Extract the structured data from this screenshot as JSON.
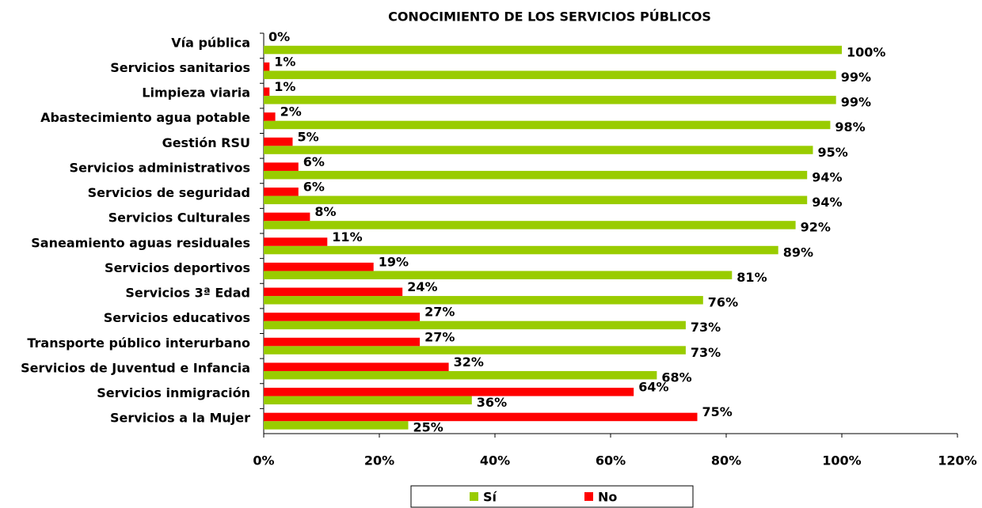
{
  "chart_data": {
    "type": "hbar",
    "title": "CONOCIMIENTO DE LOS SERVICIOS PÚBLICOS",
    "categories": [
      "Vía pública",
      "Servicios sanitarios",
      "Limpieza viaria",
      "Abastecimiento agua potable",
      "Gestión RSU",
      "Servicios administrativos",
      "Servicios de seguridad",
      "Servicios Culturales",
      "Saneamiento aguas residuales",
      "Servicios deportivos",
      "Servicios 3ª Edad",
      "Servicios educativos",
      "Transporte público interurbano",
      "Servicios de Juventud e Infancia",
      "Servicios inmigración",
      "Servicios a la Mujer"
    ],
    "series": [
      {
        "name": "Sí",
        "color": "#99cc00",
        "values": [
          100,
          99,
          99,
          98,
          95,
          94,
          94,
          92,
          89,
          81,
          76,
          73,
          73,
          68,
          36,
          25
        ],
        "value_labels": [
          "100%",
          "99%",
          "99%",
          "98%",
          "95%",
          "94%",
          "94%",
          "92%",
          "89%",
          "81%",
          "76%",
          "73%",
          "73%",
          "68%",
          "36%",
          "25%"
        ]
      },
      {
        "name": "No",
        "color": "#ff0000",
        "values": [
          0,
          1,
          1,
          2,
          5,
          6,
          6,
          8,
          11,
          19,
          24,
          27,
          27,
          32,
          64,
          75
        ],
        "value_labels": [
          "0%",
          "1%",
          "1%",
          "2%",
          "5%",
          "6%",
          "6%",
          "8%",
          "11%",
          "19%",
          "24%",
          "27%",
          "27%",
          "32%",
          "64%",
          "75%"
        ]
      }
    ],
    "xlim": [
      0,
      120
    ],
    "xticks": [
      {
        "value": 0,
        "label": "0%"
      },
      {
        "value": 20,
        "label": "20%"
      },
      {
        "value": 40,
        "label": "40%"
      },
      {
        "value": 60,
        "label": "60%"
      },
      {
        "value": 80,
        "label": "80%"
      },
      {
        "value": 100,
        "label": "100%"
      },
      {
        "value": 120,
        "label": "120%"
      }
    ],
    "legend": "bottom"
  }
}
